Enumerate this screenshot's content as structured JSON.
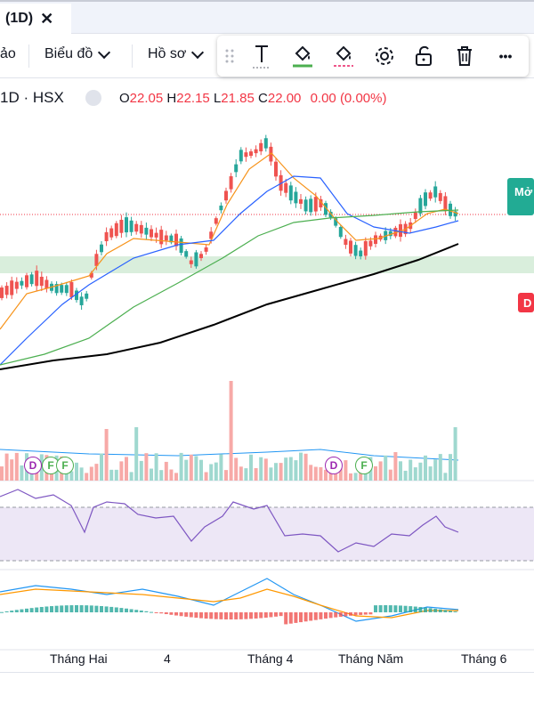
{
  "tab": {
    "title": "(1D)",
    "close": "✕"
  },
  "toolbar": {
    "partial_label": "ảo",
    "chart_type_label": "Biểu đồ",
    "profile_label": "Hồ sơ"
  },
  "floating_toolbar": {
    "tools": [
      "drag-handle-icon",
      "text-icon",
      "fill-bucket-icon",
      "fill-bucket-color-icon",
      "gear-icon",
      "unlock-icon",
      "trash-icon",
      "more-icon"
    ],
    "more_label": "•••"
  },
  "legend": {
    "symbol": "1D · HSX",
    "open_label": "O",
    "open": "22.05",
    "high_label": "H",
    "high": "22.15",
    "low_label": "L",
    "low": "21.85",
    "close_label": "C",
    "close": "22.00",
    "change": "0.00 (0.00%)"
  },
  "price_tags": {
    "top": "Mở",
    "bottom": "D"
  },
  "x_axis": [
    "Tháng Hai",
    "4",
    "Tháng 4",
    "Tháng Năm",
    "Tháng 6"
  ],
  "markers": [
    "D",
    "F",
    "F",
    "D",
    "F"
  ],
  "colors": {
    "up": "#26a69a",
    "down": "#ef5350",
    "ma_fast": "#f7931a",
    "ma_mid": "#2962ff",
    "ma_slow": "#4caf50",
    "ma_long": "#000000",
    "rsi": "#7e57c2",
    "macd": "#2196f3",
    "signal": "#ff9800"
  }
}
